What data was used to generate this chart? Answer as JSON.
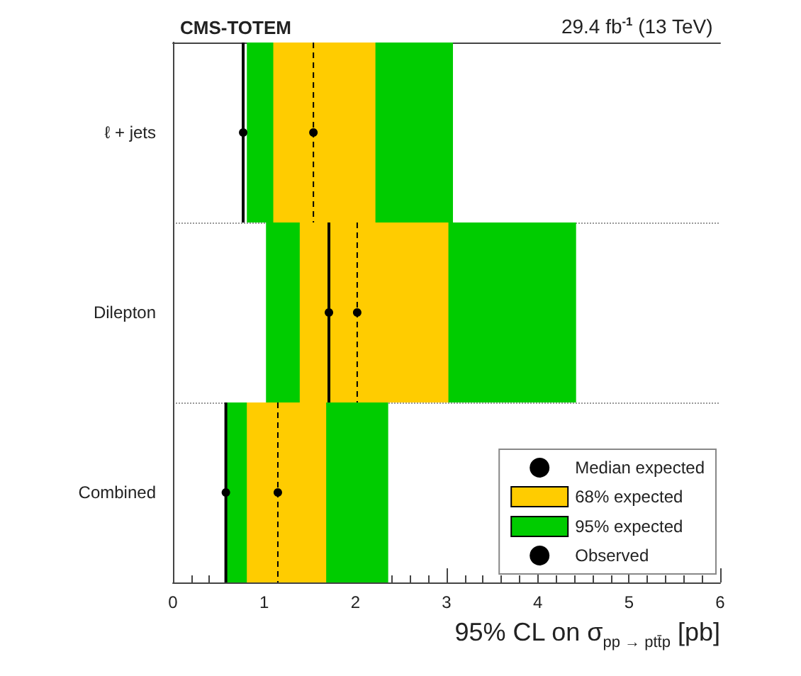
{
  "chart_data": {
    "type": "bar",
    "orientation": "horizontal",
    "title": "CMS-TOTEM",
    "subtitle": "29.4 fb$^{-1}$ (13 TeV)",
    "xlabel": "95% CL on σ$_{pp → ptt̄p}$ [pb]",
    "categories": [
      "ℓ + jets",
      "Dilepton",
      "Combined"
    ],
    "series": [
      {
        "name": "Median expected",
        "type": "scatter",
        "color": "#000000",
        "line_style": "dashed",
        "values": [
          1.54,
          2.02,
          1.15
        ]
      },
      {
        "name": "68% expected",
        "type": "bar",
        "color": "#ffcc00",
        "base": [
          1.1,
          1.39,
          0.81
        ],
        "values": [
          1.12,
          1.63,
          0.87
        ]
      },
      {
        "name": "95% expected",
        "type": "bar",
        "color": "#00cc00",
        "base": [
          0.81,
          1.02,
          0.59
        ],
        "values": [
          2.26,
          3.4,
          1.77
        ]
      },
      {
        "name": "Observed",
        "type": "scatter",
        "color": "#000000",
        "line_style": "solid",
        "values": [
          0.77,
          1.71,
          0.58
        ]
      }
    ],
    "marker": "circle",
    "xlim": [
      0,
      6
    ],
    "xticks": [
      0,
      1,
      2,
      3,
      4,
      5,
      6
    ],
    "grid": "y",
    "legend": "bottom right"
  }
}
